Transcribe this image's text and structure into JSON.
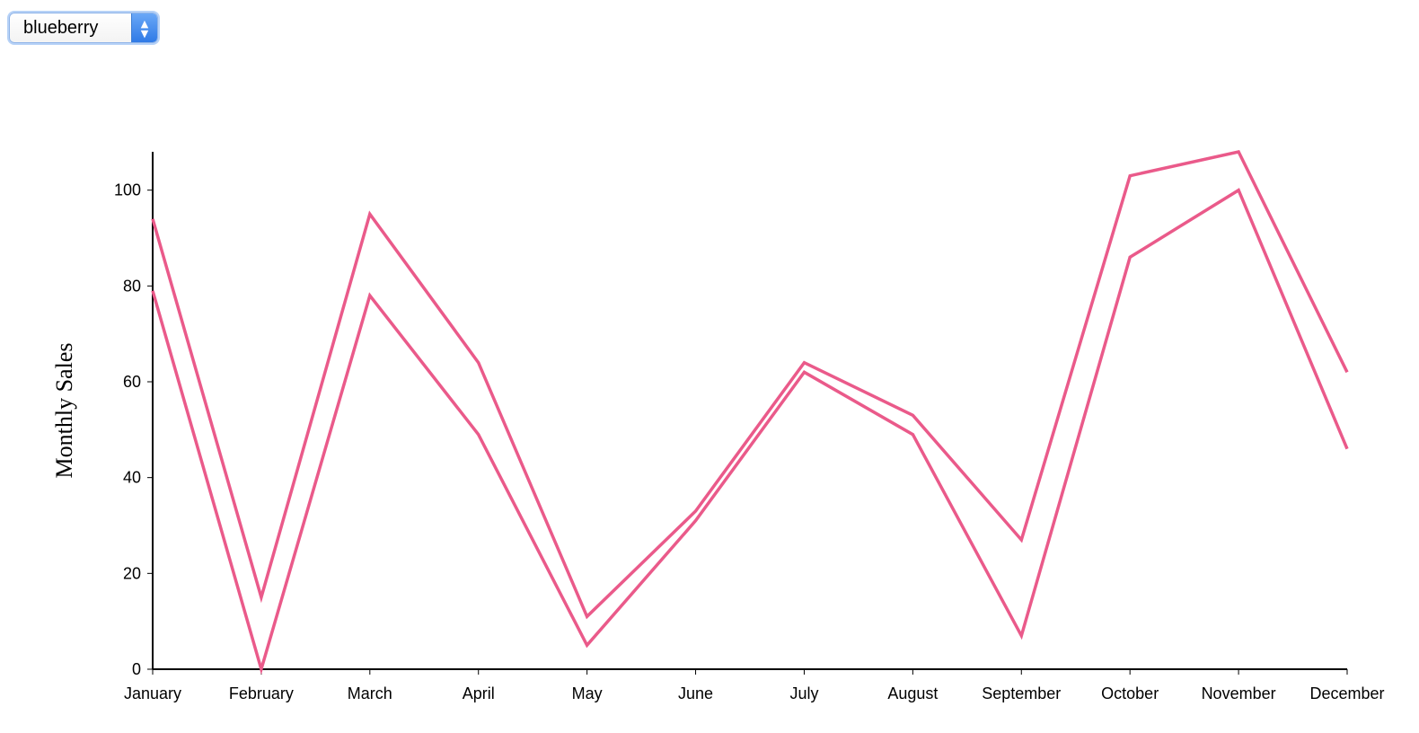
{
  "selector": {
    "selected": "blueberry",
    "icon": "up-down-chevron-icon"
  },
  "chart_data": {
    "type": "line",
    "title": "",
    "xlabel": "",
    "ylabel": "Monthly Sales",
    "categories": [
      "January",
      "February",
      "March",
      "April",
      "May",
      "June",
      "July",
      "August",
      "September",
      "October",
      "November",
      "December"
    ],
    "y_ticks": [
      0,
      20,
      40,
      60,
      80,
      100
    ],
    "ylim": [
      0,
      108
    ],
    "grid": false,
    "line_color": "#ea5a8a",
    "series": [
      {
        "values": [
          94,
          15,
          95,
          64,
          11,
          33,
          64,
          53,
          27,
          103,
          108,
          62
        ]
      },
      {
        "values": [
          79,
          0,
          78,
          49,
          5,
          31,
          62,
          49,
          7,
          86,
          100,
          46
        ]
      }
    ]
  }
}
